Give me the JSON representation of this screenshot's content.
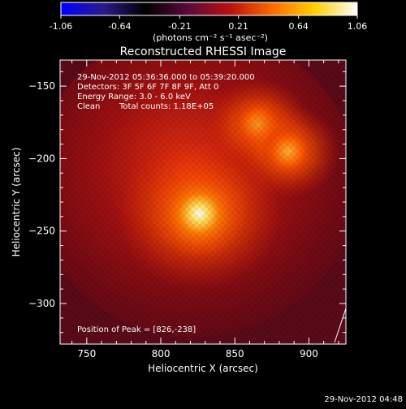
{
  "colorbar": {
    "tick_labels": [
      "-1.06",
      "-0.64",
      "-0.21",
      "0.21",
      "0.64",
      "1.06"
    ],
    "tick_values": [
      -1.06,
      -0.64,
      -0.21,
      0.21,
      0.64,
      1.06
    ],
    "range": [
      -1.06,
      1.06
    ],
    "unit_label": "(photons cm⁻² s⁻¹ asec⁻²)",
    "stops": [
      "#0000ff",
      "#2b1a8a",
      "#000000",
      "#5a0a3a",
      "#b81010",
      "#ff6a00",
      "#ffd000",
      "#ffffff"
    ]
  },
  "chart_data": {
    "type": "heatmap",
    "title": "Reconstructed RHESSI Image",
    "xlabel": "Heliocentric X (arcsec)",
    "ylabel": "Heliocentric Y (arcsec)",
    "xlim": [
      732,
      925
    ],
    "ylim": [
      -328,
      -132
    ],
    "x_ticks": [
      750,
      800,
      850,
      900
    ],
    "x_tick_labels": [
      "750",
      "800",
      "850",
      "900"
    ],
    "y_ticks": [
      -150,
      -200,
      -250,
      -300
    ],
    "y_tick_labels": [
      "−150",
      "−200",
      "−250",
      "−300"
    ],
    "sources": [
      {
        "x": 826,
        "y": -238,
        "intensity": 1.06
      },
      {
        "x": 866,
        "y": -177,
        "intensity": 0.75
      },
      {
        "x": 886,
        "y": -195,
        "intensity": 0.65
      }
    ],
    "annotations": {
      "time_range": "29-Nov-2012 05:36:36.000 to 05:39:20.000",
      "detectors": "Detectors: 3F 5F 6F 7F 8F 9F, Att 0",
      "energy": "Energy Range: 3.0 - 6.0 keV",
      "method": "Clean",
      "counts": "Total counts: 1.18E+05",
      "peak": "Position of Peak = [826,-238]"
    },
    "grid": false
  },
  "footer": {
    "timestamp": "29-Nov-2012 04:48"
  }
}
